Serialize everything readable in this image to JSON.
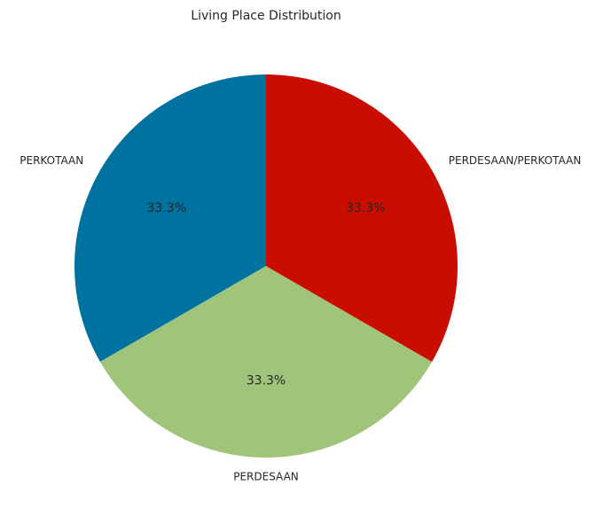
{
  "chart_data": {
    "type": "pie",
    "title": "Living Place Distribution",
    "labels": [
      "PERKOTAAN",
      "PERDESAAN",
      "PERDESAAN/PERKOTAAN"
    ],
    "values": [
      33.3,
      33.3,
      33.3
    ],
    "percent_labels": [
      "33.3%",
      "33.3%",
      "33.3%"
    ],
    "colors": [
      "#00729F",
      "#A0C479",
      "#C90D00"
    ],
    "start_angle_deg": 90,
    "direction": "counterclockwise"
  }
}
